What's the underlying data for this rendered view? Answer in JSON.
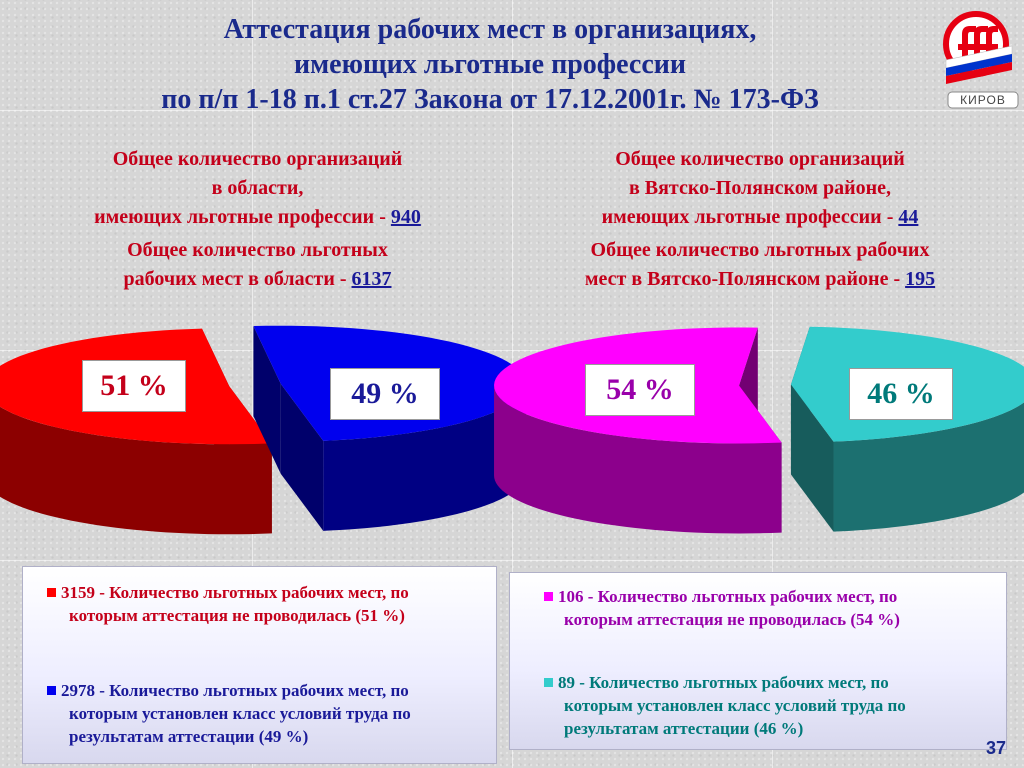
{
  "title": {
    "line1": "Аттестация рабочих мест в организациях,",
    "line2": "имеющих льготные профессии",
    "line3": "по п/п 1-18 п.1 ст.27 Закона от 17.12.2001г. № 173-ФЗ"
  },
  "logo": {
    "text": "КИРОВ",
    "icon": "pension-fund-logo"
  },
  "left": {
    "orgs_line1": "Общее количество организаций",
    "orgs_line2": "в области,",
    "orgs_line3": "имеющих льготные профессии -",
    "orgs_value": "940",
    "places_line1": "Общее количество льготных",
    "places_line2": "рабочих мест в области -",
    "places_value": "6137"
  },
  "right": {
    "orgs_line1": "Общее количество организаций",
    "orgs_line2": "в Вятско-Полянском районе,",
    "orgs_line3": "имеющих льготные профессии -",
    "orgs_value": "44",
    "places_line1": "Общее количество льготных рабочих",
    "places_line2": "мест в Вятско-Полянском районе -",
    "places_value": "195"
  },
  "chart_data": [
    {
      "type": "pie",
      "labels": [
        "51 %",
        "49 %"
      ],
      "values": [
        51,
        49
      ],
      "colors": [
        "#ff0000",
        "#0000ee"
      ]
    },
    {
      "type": "pie",
      "labels": [
        "54 %",
        "46 %"
      ],
      "values": [
        54,
        46
      ],
      "colors": [
        "#ff00ff",
        "#33cccc"
      ]
    }
  ],
  "legend_left": {
    "item1_line1": "3159 - Количество льготных рабочих мест, по",
    "item1_line2": "которым аттестация не проводилась (51 %)",
    "item2_line1": "2978 - Количество льготных рабочих мест, по",
    "item2_line2": "которым установлен класс условий труда по",
    "item2_line3": "результатам аттестации (49 %)",
    "color1": "#ff0000",
    "color2": "#0000ee"
  },
  "legend_right": {
    "item1_line1": "106 - Количество льготных рабочих мест, по",
    "item1_line2": "которым аттестация не проводилась (54 %)",
    "item2_line1": "89 - Количество льготных рабочих мест, по",
    "item2_line2": "которым установлен класс условий труда по",
    "item2_line3": "результатам аттестации (46 %)",
    "color1": "#ff00ff",
    "color2": "#33cccc"
  },
  "page_number": "37"
}
